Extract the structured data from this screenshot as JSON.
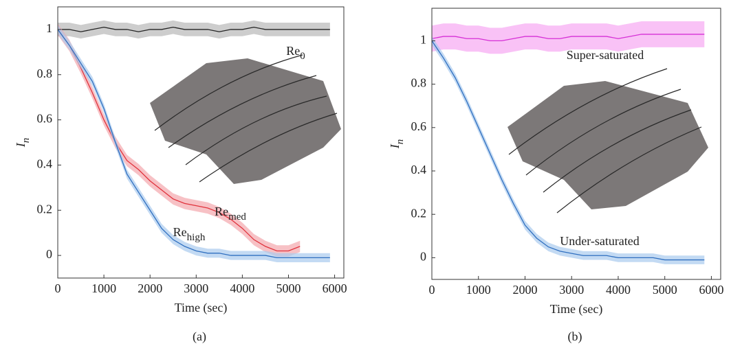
{
  "chart_data": [
    {
      "type": "line",
      "caption": "(a)",
      "xlabel": "Time (sec)",
      "ylabel": {
        "text": "I",
        "subscript": "n"
      },
      "x": [
        0,
        250,
        500,
        750,
        1000,
        1250,
        1500,
        1750,
        2000,
        2250,
        2500,
        2750,
        3000,
        3250,
        3500,
        3750,
        4000,
        4250,
        4500,
        4750,
        5000,
        5250,
        5500,
        5750,
        5900
      ],
      "xlim": [
        0,
        6200
      ],
      "ylim": [
        -0.1,
        1.1
      ],
      "xticks": [
        0,
        1000,
        2000,
        3000,
        4000,
        5000,
        6000
      ],
      "yticks": [
        0,
        0.2,
        0.4,
        0.6,
        0.8,
        1
      ],
      "series": [
        {
          "name": "Re",
          "subscript": "0",
          "color": "#222222",
          "band_color": "#b8b8b8",
          "band": 0.03,
          "values": [
            1.0,
            1.0,
            0.99,
            1.0,
            1.01,
            1.0,
            1.0,
            0.99,
            1.0,
            1.0,
            1.01,
            1.0,
            1.0,
            1.0,
            0.99,
            1.0,
            1.0,
            1.01,
            1.0,
            1.0,
            1.0,
            1.0,
            1.0,
            1.0,
            1.0
          ]
        },
        {
          "name": "Re",
          "subscript": "med",
          "color": "#e0323c",
          "band_color": "#f4a6ac",
          "band": 0.025,
          "values": [
            1.0,
            0.93,
            0.83,
            0.72,
            0.6,
            0.5,
            0.42,
            0.38,
            0.33,
            0.29,
            0.25,
            0.23,
            0.22,
            0.21,
            0.19,
            0.16,
            0.12,
            0.07,
            0.04,
            0.02,
            0.02,
            0.04,
            null,
            null,
            null
          ]
        },
        {
          "name": "Re",
          "subscript": "high",
          "color": "#2f6fc0",
          "band_color": "#a9cbee",
          "band": 0.02,
          "values": [
            1.0,
            0.93,
            0.85,
            0.77,
            0.65,
            0.5,
            0.36,
            0.28,
            0.2,
            0.12,
            0.07,
            0.04,
            0.02,
            0.01,
            0.01,
            0.0,
            0.0,
            0.0,
            0.0,
            -0.01,
            -0.01,
            -0.01,
            -0.01,
            -0.01,
            -0.01
          ]
        }
      ]
    },
    {
      "type": "line",
      "caption": "(b)",
      "xlabel": "Time (sec)",
      "ylabel": {
        "text": "I",
        "subscript": "n"
      },
      "x": [
        0,
        250,
        500,
        750,
        1000,
        1250,
        1500,
        1750,
        2000,
        2250,
        2500,
        2750,
        3000,
        3250,
        3500,
        3750,
        4000,
        4250,
        4500,
        4750,
        5000,
        5250,
        5500,
        5750,
        5850
      ],
      "xlim": [
        0,
        6200
      ],
      "ylim": [
        -0.1,
        1.15
      ],
      "xticks": [
        0,
        1000,
        2000,
        3000,
        4000,
        5000,
        6000
      ],
      "yticks": [
        0,
        0.2,
        0.4,
        0.6,
        0.8,
        1
      ],
      "series": [
        {
          "name": "Super-saturated",
          "color": "#d62fd6",
          "band_color": "#f6a8f2",
          "band": 0.06,
          "values": [
            1.01,
            1.02,
            1.02,
            1.01,
            1.01,
            1.0,
            1.0,
            1.01,
            1.02,
            1.02,
            1.01,
            1.01,
            1.02,
            1.02,
            1.02,
            1.02,
            1.01,
            1.02,
            1.03,
            1.03,
            1.03,
            1.03,
            1.03,
            1.03,
            1.03
          ]
        },
        {
          "name": "Under-saturated",
          "color": "#2f6fc0",
          "band_color": "#a9cbee",
          "band": 0.02,
          "values": [
            1.0,
            0.92,
            0.83,
            0.72,
            0.6,
            0.48,
            0.36,
            0.25,
            0.15,
            0.09,
            0.05,
            0.03,
            0.02,
            0.01,
            0.01,
            0.01,
            0.0,
            0.0,
            0.0,
            0.0,
            -0.01,
            -0.01,
            -0.01,
            -0.01,
            -0.01
          ]
        }
      ]
    }
  ]
}
